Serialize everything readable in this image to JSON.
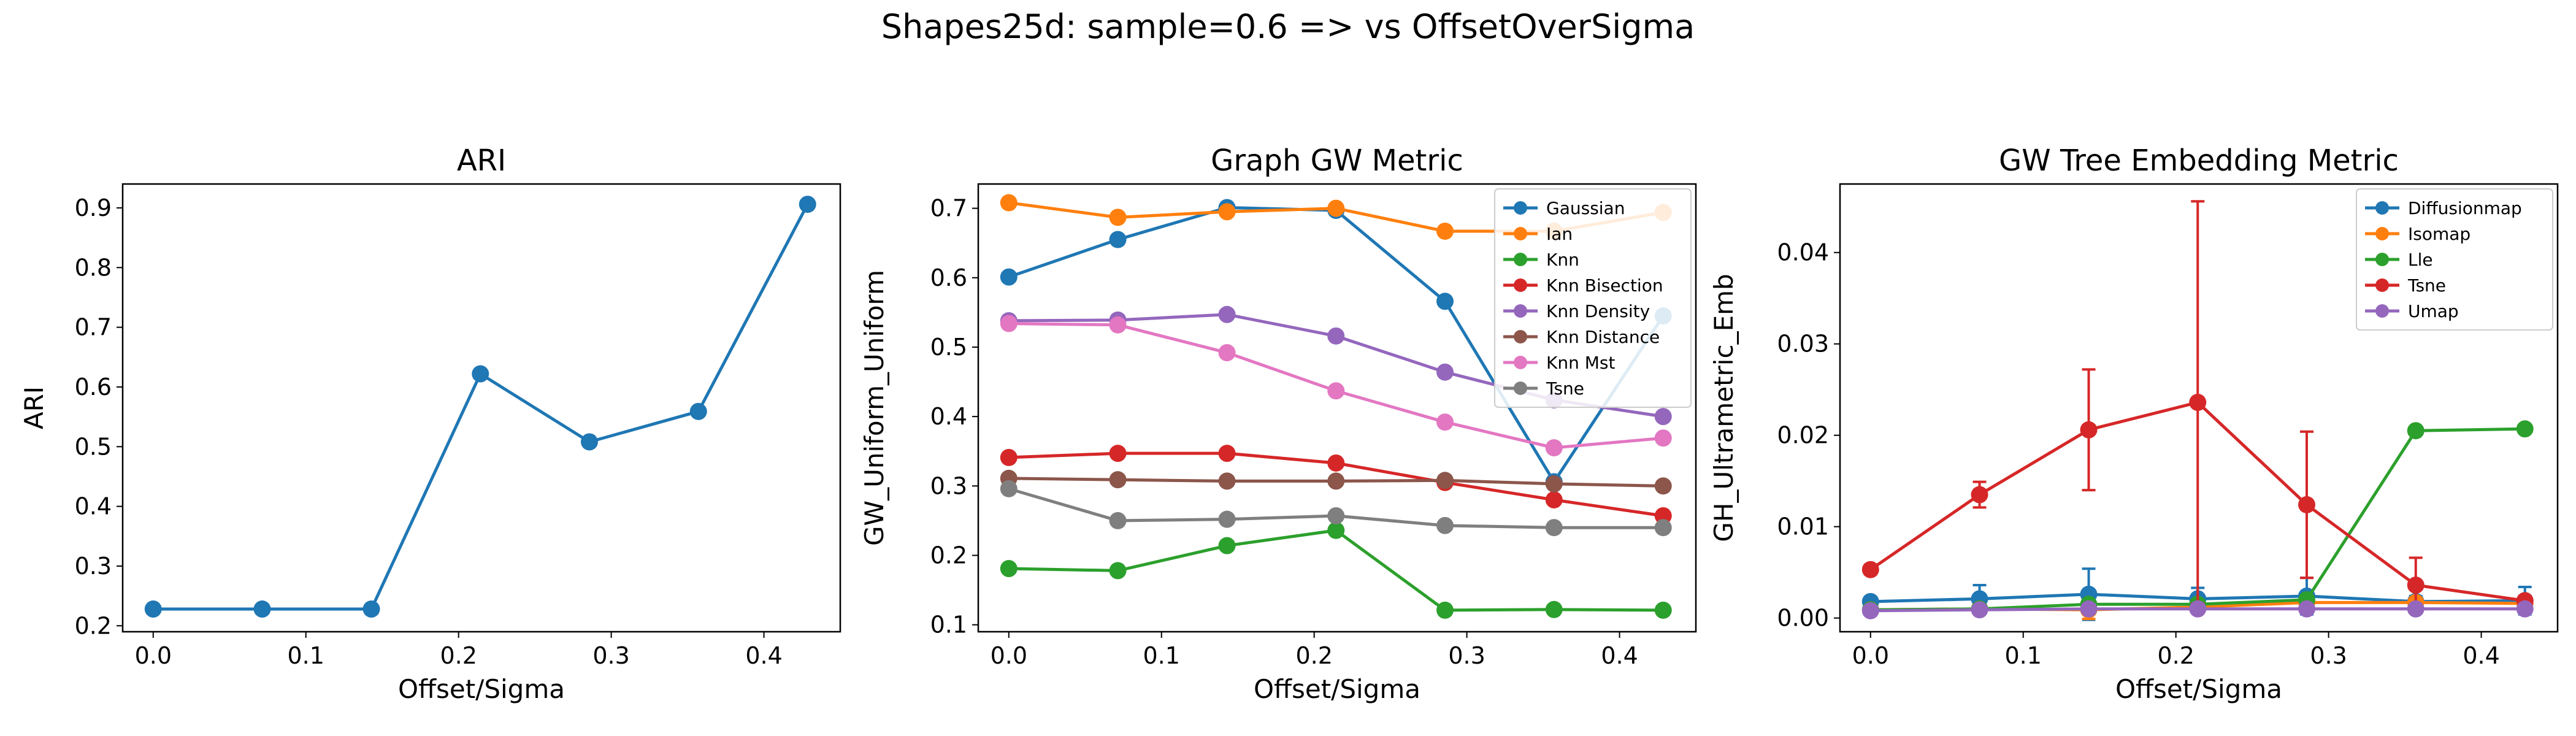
{
  "suptitle": "Shapes25d: sample=0.6 => vs OffsetOverSigma",
  "chart_data": [
    {
      "type": "line",
      "title": "ARI",
      "xlabel": "Offset/Sigma",
      "ylabel": "ARI",
      "x": [
        0.0,
        0.0714,
        0.1429,
        0.2143,
        0.2857,
        0.3571,
        0.4286
      ],
      "xlim": [
        -0.02,
        0.45
      ],
      "ylim": [
        0.19,
        0.94
      ],
      "xticks": [
        0.0,
        0.1,
        0.2,
        0.3,
        0.4
      ],
      "xtick_labels": [
        "0.0",
        "0.1",
        "0.2",
        "0.3",
        "0.4"
      ],
      "yticks": [
        0.2,
        0.3,
        0.4,
        0.5,
        0.6,
        0.7,
        0.8,
        0.9
      ],
      "ytick_labels": [
        "0.2",
        "0.3",
        "0.4",
        "0.5",
        "0.6",
        "0.7",
        "0.8",
        "0.9"
      ],
      "legend": false,
      "series": [
        {
          "color": "#1f77b4",
          "values": [
            0.228,
            0.228,
            0.228,
            0.622,
            0.508,
            0.559,
            0.906
          ]
        }
      ]
    },
    {
      "type": "line",
      "title": "Graph GW Metric",
      "xlabel": "Offset/Sigma",
      "ylabel": "GW_Uniform_Uniform",
      "x": [
        0.0,
        0.0714,
        0.1429,
        0.2143,
        0.2857,
        0.3571,
        0.4286
      ],
      "xlim": [
        -0.02,
        0.45
      ],
      "ylim": [
        0.09,
        0.735
      ],
      "xticks": [
        0.0,
        0.1,
        0.2,
        0.3,
        0.4
      ],
      "xtick_labels": [
        "0.0",
        "0.1",
        "0.2",
        "0.3",
        "0.4"
      ],
      "yticks": [
        0.1,
        0.2,
        0.3,
        0.4,
        0.5,
        0.6,
        0.7
      ],
      "ytick_labels": [
        "0.1",
        "0.2",
        "0.3",
        "0.4",
        "0.5",
        "0.6",
        "0.7"
      ],
      "legend": "top-right",
      "series": [
        {
          "name": "Gaussian",
          "color": "#1f77b4",
          "values": [
            0.601,
            0.655,
            0.701,
            0.697,
            0.566,
            0.306,
            0.545
          ]
        },
        {
          "name": "Ian",
          "color": "#ff7f0e",
          "values": [
            0.708,
            0.687,
            0.695,
            0.7,
            0.667,
            0.667,
            0.694
          ]
        },
        {
          "name": "Knn",
          "color": "#2ca02c",
          "values": [
            0.181,
            0.178,
            0.214,
            0.236,
            0.121,
            0.122,
            0.121
          ]
        },
        {
          "name": "Knn Bisection",
          "color": "#d62728",
          "values": [
            0.341,
            0.347,
            0.347,
            0.333,
            0.305,
            0.28,
            0.257
          ]
        },
        {
          "name": "Knn Density",
          "color": "#9467bd",
          "values": [
            0.538,
            0.539,
            0.547,
            0.516,
            0.464,
            0.424,
            0.4
          ]
        },
        {
          "name": "Knn Distance",
          "color": "#8c564b",
          "values": [
            0.311,
            0.309,
            0.307,
            0.307,
            0.308,
            0.303,
            0.3
          ]
        },
        {
          "name": "Knn Mst",
          "color": "#e377c2",
          "values": [
            0.534,
            0.532,
            0.492,
            0.437,
            0.392,
            0.355,
            0.369
          ]
        },
        {
          "name": "Tsne",
          "color": "#7f7f7f",
          "values": [
            0.296,
            0.25,
            0.252,
            0.257,
            0.243,
            0.24,
            0.24
          ]
        }
      ]
    },
    {
      "type": "line",
      "title": "GW Tree Embedding Metric",
      "xlabel": "Offset/Sigma",
      "ylabel": "GH_Ultrametric_Emb",
      "x": [
        0.0,
        0.0714,
        0.1429,
        0.2143,
        0.2857,
        0.3571,
        0.4286
      ],
      "xlim": [
        -0.02,
        0.45
      ],
      "ylim": [
        -0.0015,
        0.0475
      ],
      "xticks": [
        0.0,
        0.1,
        0.2,
        0.3,
        0.4
      ],
      "xtick_labels": [
        "0.0",
        "0.1",
        "0.2",
        "0.3",
        "0.4"
      ],
      "yticks": [
        0.0,
        0.01,
        0.02,
        0.03,
        0.04
      ],
      "ytick_labels": [
        "0.00",
        "0.01",
        "0.02",
        "0.03",
        "0.04"
      ],
      "legend": "top-right",
      "series": [
        {
          "name": "Diffusionmap",
          "color": "#1f77b4",
          "values": [
            0.0018,
            0.0021,
            0.0026,
            0.0021,
            0.0024,
            0.0018,
            0.0019
          ],
          "errors": [
            0.0004,
            0.0015,
            0.0028,
            0.0012,
            0.002,
            0.0006,
            0.0015
          ]
        },
        {
          "name": "Isomap",
          "color": "#ff7f0e",
          "values": [
            0.0009,
            0.001,
            0.0009,
            0.0012,
            0.0017,
            0.0017,
            0.0016
          ],
          "errors": [
            0.0002,
            0.0003,
            0.001,
            0.0003,
            0.0004,
            0.0003,
            0.0003
          ]
        },
        {
          "name": "Lle",
          "color": "#2ca02c",
          "values": [
            0.0009,
            0.001,
            0.0015,
            0.0015,
            0.002,
            0.0205,
            0.0207
          ],
          "errors": [
            0.0002,
            0.0002,
            0.0003,
            0.0003,
            0.0004,
            0.0003,
            0.0003
          ]
        },
        {
          "name": "Tsne",
          "color": "#d62728",
          "values": [
            0.0053,
            0.0135,
            0.0206,
            0.0236,
            0.0124,
            0.0036,
            0.0019
          ],
          "errors": [
            0.0005,
            0.0014,
            0.0066,
            0.022,
            0.008,
            0.003,
            0.0005
          ]
        },
        {
          "name": "Umap",
          "color": "#9467bd",
          "values": [
            0.0008,
            0.0009,
            0.001,
            0.001,
            0.001,
            0.001,
            0.001
          ],
          "errors": [
            0.0001,
            0.0001,
            0.0001,
            0.0001,
            0.0001,
            0.0001,
            0.0001
          ]
        }
      ]
    }
  ]
}
